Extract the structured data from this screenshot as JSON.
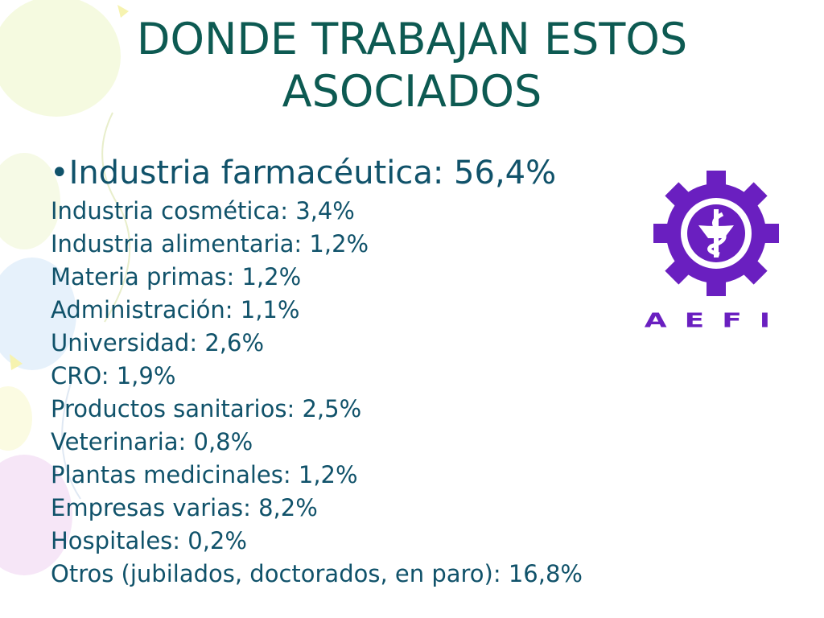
{
  "title": {
    "lines": [
      "DONDE TRABAJAN ESTOS",
      "ASOCIADOS"
    ]
  },
  "heading": "•Industria farmacéutica: 56,4%",
  "items": [
    "Industria cosmética: 3,4%",
    "Industria alimentaria: 1,2%",
    "Materia primas: 1,2%",
    "Administración: 1,1%",
    "Universidad: 2,6%",
    "CRO: 1,9%",
    "Productos sanitarios: 2,5%",
    "Veterinaria: 0,8%",
    "Plantas medicinales: 1,2%",
    "Empresas varias: 8,2%",
    "Hospitales: 0,2%",
    "Otros (jubilados, doctorados, en paro): 16,8%"
  ],
  "logo": {
    "label": "AEFI"
  }
}
